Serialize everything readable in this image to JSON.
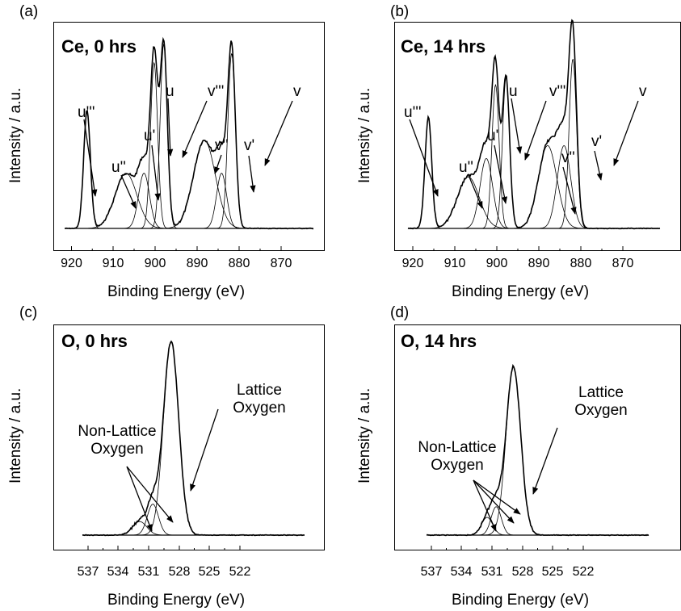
{
  "chart_data": [
    {
      "panel": "(a)",
      "type": "line",
      "title": "Ce, 0 hrs",
      "xlabel": "Binding Energy (eV)",
      "ylabel": "Intensity / a.u.",
      "xlim": [
        923,
        868
      ],
      "x_reversed": true,
      "xticks": [
        920,
        910,
        900,
        890,
        880,
        870
      ],
      "peak_labels": [
        {
          "label": "u'''",
          "x": 916.0
        },
        {
          "label": "u''",
          "x": 907.0
        },
        {
          "label": "u'",
          "x": 903.0
        },
        {
          "label": "u",
          "x": 900.5
        },
        {
          "label": "v'''",
          "x": 898.0
        },
        {
          "label": "v''",
          "x": 889.0
        },
        {
          "label": "v'",
          "x": 884.5
        },
        {
          "label": "v",
          "x": 882.0
        }
      ],
      "components": [
        {
          "center": 916.3,
          "height": 0.64,
          "width": 0.8
        },
        {
          "center": 907.0,
          "height": 0.3,
          "width": 2.6
        },
        {
          "center": 902.7,
          "height": 0.3,
          "width": 1.3
        },
        {
          "center": 900.3,
          "height": 0.9,
          "width": 0.85
        },
        {
          "center": 898.0,
          "height": 1.0,
          "width": 0.85
        },
        {
          "center": 888.3,
          "height": 0.48,
          "width": 2.6
        },
        {
          "center": 884.2,
          "height": 0.3,
          "width": 1.2
        },
        {
          "center": 881.8,
          "height": 0.95,
          "width": 0.9
        }
      ]
    },
    {
      "panel": "(b)",
      "type": "line",
      "title": "Ce, 14 hrs",
      "xlabel": "Binding Energy (eV)",
      "ylabel": "Intensity / a.u.",
      "xlim": [
        923,
        868
      ],
      "x_reversed": true,
      "xticks": [
        920,
        910,
        900,
        890,
        880,
        870
      ],
      "peak_labels": [
        {
          "label": "u'''",
          "x": 916.0
        },
        {
          "label": "u''",
          "x": 907.0
        },
        {
          "label": "u'",
          "x": 903.0
        },
        {
          "label": "u",
          "x": 900.5
        },
        {
          "label": "v'''",
          "x": 898.0
        },
        {
          "label": "v''",
          "x": 889.0
        },
        {
          "label": "v'",
          "x": 884.5
        },
        {
          "label": "v",
          "x": 882.0
        }
      ],
      "components": [
        {
          "center": 916.3,
          "height": 0.6,
          "width": 0.8
        },
        {
          "center": 906.8,
          "height": 0.28,
          "width": 2.6
        },
        {
          "center": 902.5,
          "height": 0.38,
          "width": 1.5
        },
        {
          "center": 900.3,
          "height": 0.78,
          "width": 0.85
        },
        {
          "center": 897.8,
          "height": 0.82,
          "width": 0.85
        },
        {
          "center": 887.9,
          "height": 0.45,
          "width": 2.2
        },
        {
          "center": 884.0,
          "height": 0.45,
          "width": 1.6
        },
        {
          "center": 881.9,
          "height": 0.92,
          "width": 0.9
        }
      ]
    },
    {
      "panel": "(c)",
      "type": "line",
      "title": "O, 0 hrs",
      "xlabel": "Binding Energy (eV)",
      "ylabel": "Intensity / a.u.",
      "xlim": [
        537,
        522
      ],
      "x_reversed": true,
      "xticks": [
        537,
        534,
        531,
        528,
        525,
        522
      ],
      "annotations": [
        "Non-Lattice",
        "Oxygen",
        "Lattice",
        "Oxygen"
      ],
      "components": [
        {
          "center": 528.8,
          "height": 1.0,
          "width": 0.75
        },
        {
          "center": 530.6,
          "height": 0.16,
          "width": 0.55
        },
        {
          "center": 531.9,
          "height": 0.07,
          "width": 0.7
        }
      ]
    },
    {
      "panel": "(d)",
      "type": "line",
      "title": "O, 14 hrs",
      "xlabel": "Binding Energy (eV)",
      "ylabel": "Intensity / a.u.",
      "xlim": [
        537,
        522
      ],
      "x_reversed": true,
      "xticks": [
        537,
        534,
        531,
        528,
        525,
        522
      ],
      "annotations": [
        "Non-Lattice",
        "Oxygen",
        "Lattice",
        "Oxygen"
      ],
      "components": [
        {
          "center": 528.9,
          "height": 0.95,
          "width": 0.72
        },
        {
          "center": 530.6,
          "height": 0.16,
          "width": 0.5
        },
        {
          "center": 531.5,
          "height": 0.1,
          "width": 0.55
        }
      ]
    }
  ]
}
